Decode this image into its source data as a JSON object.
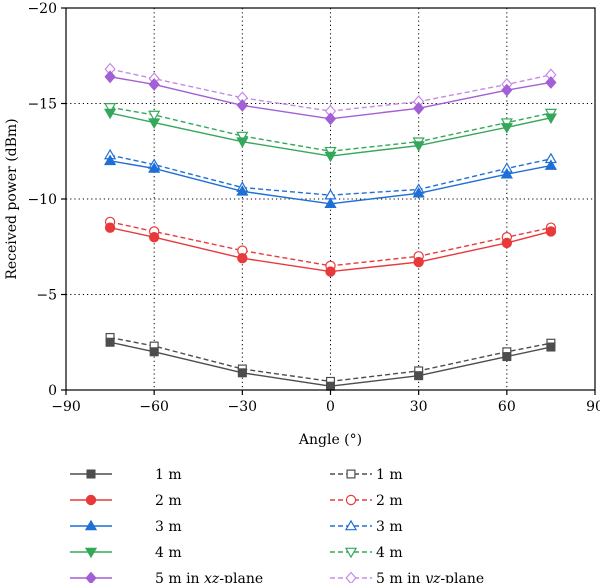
{
  "chart_data": {
    "type": "line",
    "xlabel": "Angle (°)",
    "ylabel": "Received power (dBm)",
    "xlim": [
      -90,
      90
    ],
    "ylim": [
      0,
      -20
    ],
    "y_axis_inverted": true,
    "x_ticks": [
      -90,
      -60,
      -30,
      0,
      30,
      60,
      90
    ],
    "y_ticks": [
      0,
      -5,
      -10,
      -15,
      -20
    ],
    "x_tick_labels": [
      "−90",
      "−60",
      "−30",
      "0",
      "30",
      "60",
      "90"
    ],
    "y_tick_labels": [
      "0",
      "−5",
      "−10",
      "−15",
      "−20"
    ],
    "grid": "dotted",
    "legend_position": "bottom",
    "x": [
      -75,
      -60,
      -30,
      0,
      30,
      60,
      75
    ],
    "series": [
      {
        "name": "1 m",
        "legend_parts": [
          {
            "text": "1 m",
            "italic": false
          }
        ],
        "color": "#4d4d4d",
        "marker": "square",
        "filled": true,
        "dashed": false,
        "values": [
          -2.5,
          -2.0,
          -0.9,
          -0.2,
          -0.75,
          -1.75,
          -2.25
        ]
      },
      {
        "name": "2 m",
        "legend_parts": [
          {
            "text": "2 m",
            "italic": false
          }
        ],
        "color": "#e83a3a",
        "marker": "circle",
        "filled": true,
        "dashed": false,
        "values": [
          -8.5,
          -8.0,
          -6.9,
          -6.2,
          -6.7,
          -7.7,
          -8.3
        ]
      },
      {
        "name": "3 m",
        "legend_parts": [
          {
            "text": "3 m",
            "italic": false
          }
        ],
        "color": "#1f6fd6",
        "marker": "triangle-up",
        "filled": true,
        "dashed": false,
        "values": [
          -12.0,
          -11.6,
          -10.4,
          -9.75,
          -10.3,
          -11.3,
          -11.75
        ]
      },
      {
        "name": "4 m",
        "legend_parts": [
          {
            "text": "4 m",
            "italic": false
          }
        ],
        "color": "#34a85a",
        "marker": "triangle-down",
        "filled": true,
        "dashed": false,
        "values": [
          -14.5,
          -14.0,
          -13.0,
          -12.25,
          -12.8,
          -13.75,
          -14.25
        ]
      },
      {
        "name": "5 m in xz-plane",
        "legend_parts": [
          {
            "text": "5 m in ",
            "italic": false
          },
          {
            "text": "xz",
            "italic": true
          },
          {
            "text": "-plane",
            "italic": false
          }
        ],
        "color": "#a35fd6",
        "marker": "diamond",
        "filled": true,
        "dashed": false,
        "values": [
          -16.4,
          -16.0,
          -14.9,
          -14.2,
          -14.75,
          -15.7,
          -16.1
        ]
      },
      {
        "name": "1 m",
        "legend_parts": [
          {
            "text": "1 m",
            "italic": false
          }
        ],
        "color": "#4d4d4d",
        "marker": "square",
        "filled": false,
        "dashed": true,
        "values": [
          -2.75,
          -2.3,
          -1.1,
          -0.45,
          -1.0,
          -2.0,
          -2.45
        ]
      },
      {
        "name": "2 m",
        "legend_parts": [
          {
            "text": "2 m",
            "italic": false
          }
        ],
        "color": "#e83a3a",
        "marker": "circle",
        "filled": false,
        "dashed": true,
        "values": [
          -8.8,
          -8.3,
          -7.3,
          -6.5,
          -7.0,
          -8.0,
          -8.5
        ]
      },
      {
        "name": "3 m",
        "legend_parts": [
          {
            "text": "3 m",
            "italic": false
          }
        ],
        "color": "#1f6fd6",
        "marker": "triangle-up",
        "filled": false,
        "dashed": true,
        "values": [
          -12.3,
          -11.8,
          -10.6,
          -10.2,
          -10.5,
          -11.6,
          -12.1
        ]
      },
      {
        "name": "4 m",
        "legend_parts": [
          {
            "text": "4 m",
            "italic": false
          }
        ],
        "color": "#34a85a",
        "marker": "triangle-down",
        "filled": false,
        "dashed": true,
        "values": [
          -14.8,
          -14.4,
          -13.3,
          -12.5,
          -13.0,
          -14.0,
          -14.5
        ]
      },
      {
        "name": "5 m in yz-plane",
        "legend_parts": [
          {
            "text": "5 m in ",
            "italic": false
          },
          {
            "text": "yz",
            "italic": true
          },
          {
            "text": "-plane",
            "italic": false
          }
        ],
        "color": "#c68ae8",
        "marker": "diamond",
        "filled": false,
        "dashed": true,
        "values": [
          -16.8,
          -16.3,
          -15.3,
          -14.6,
          -15.1,
          -16.0,
          -16.5
        ]
      }
    ]
  }
}
